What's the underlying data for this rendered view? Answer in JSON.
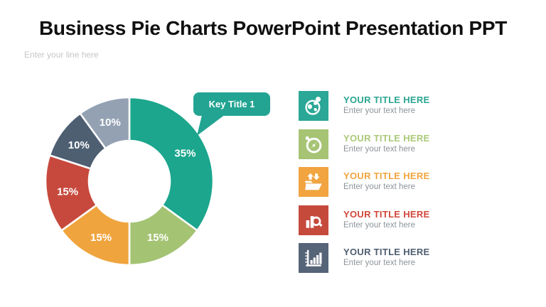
{
  "slide": {
    "title": "Business Pie Charts PowerPoint Presentation PPT",
    "tagline_placeholder": "Enter your line here"
  },
  "callout": {
    "label": "Key Title 1",
    "color": "#23a492",
    "points_to_slice": "35%"
  },
  "chart_data": {
    "type": "pie",
    "donut": true,
    "start_angle_deg": 0,
    "direction": "clockwise",
    "inner_radius_ratio": 0.48,
    "title": "",
    "slices": [
      {
        "label": "35%",
        "value": 35,
        "color": "#1ba68d"
      },
      {
        "label": "15%",
        "value": 15,
        "color": "#a4c373"
      },
      {
        "label": "15%",
        "value": 15,
        "color": "#f0a43e"
      },
      {
        "label": "15%",
        "value": 15,
        "color": "#c7493d"
      },
      {
        "label": "10%",
        "value": 10,
        "color": "#4e5f72"
      },
      {
        "label": "10%",
        "value": 10,
        "color": "#93a1b3"
      }
    ]
  },
  "info_list": {
    "items": [
      {
        "icon": "globe-pin-icon",
        "title": "YOUR TITLE HERE",
        "subtitle": "Enter your text here",
        "accent": "#2aa691",
        "icon_bg": "#2aa797"
      },
      {
        "icon": "stopwatch-icon",
        "title": "YOUR TITLE HERE",
        "subtitle": "Enter your text here",
        "accent": "#abc878",
        "icon_bg": "#a6c474"
      },
      {
        "icon": "folder-transfer-icon",
        "title": "YOUR TITLE HERE",
        "subtitle": "Enter your text here",
        "accent": "#f1a43f",
        "icon_bg": "#f1a440"
      },
      {
        "icon": "chart-magnifier-icon",
        "title": "YOUR TITLE HERE",
        "subtitle": "Enter your text here",
        "accent": "#d2473a",
        "icon_bg": "#c64a3c"
      },
      {
        "icon": "bar-graph-icon",
        "title": "YOUR TITLE HERE",
        "subtitle": "Enter your text here",
        "accent": "#4e5d70",
        "icon_bg": "#566478"
      }
    ]
  }
}
